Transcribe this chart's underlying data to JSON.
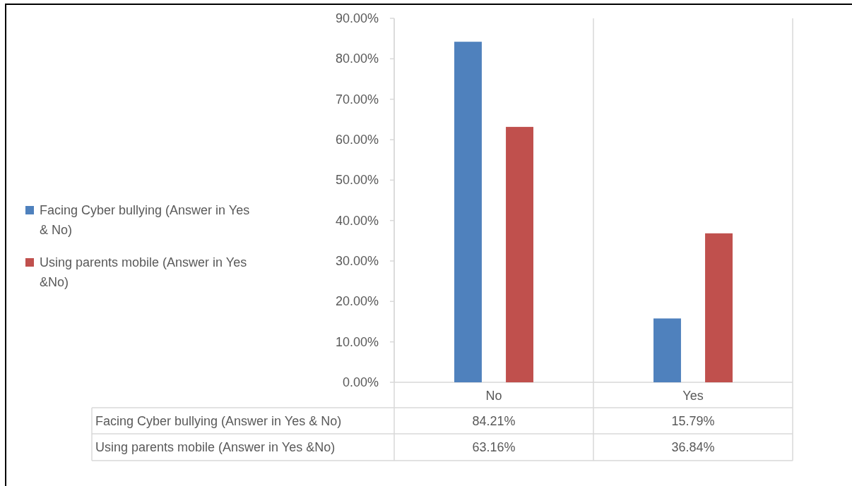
{
  "chart_data": {
    "type": "bar",
    "categories": [
      "No",
      "Yes"
    ],
    "series": [
      {
        "name": "Facing Cyber bullying (Answer in Yes & No)",
        "color": "#4f81bd",
        "values": [
          84.21,
          15.79
        ],
        "value_labels": [
          "84.21%",
          "15.79%"
        ]
      },
      {
        "name": "Using parents mobile (Answer in Yes &No)",
        "color": "#c0504d",
        "values": [
          63.16,
          36.84
        ],
        "value_labels": [
          "63.16%",
          "36.84%"
        ]
      }
    ],
    "ylim": [
      0,
      90
    ],
    "yticks": [
      {
        "value": 0,
        "label": "0.00%"
      },
      {
        "value": 10,
        "label": "10.00%"
      },
      {
        "value": 20,
        "label": "20.00%"
      },
      {
        "value": 30,
        "label": "30.00%"
      },
      {
        "value": 40,
        "label": "40.00%"
      },
      {
        "value": 50,
        "label": "50.00%"
      },
      {
        "value": 60,
        "label": "60.00%"
      },
      {
        "value": 70,
        "label": "70.00%"
      },
      {
        "value": 80,
        "label": "80.00%"
      },
      {
        "value": 90,
        "label": "90.00%"
      }
    ],
    "legend": "left"
  }
}
